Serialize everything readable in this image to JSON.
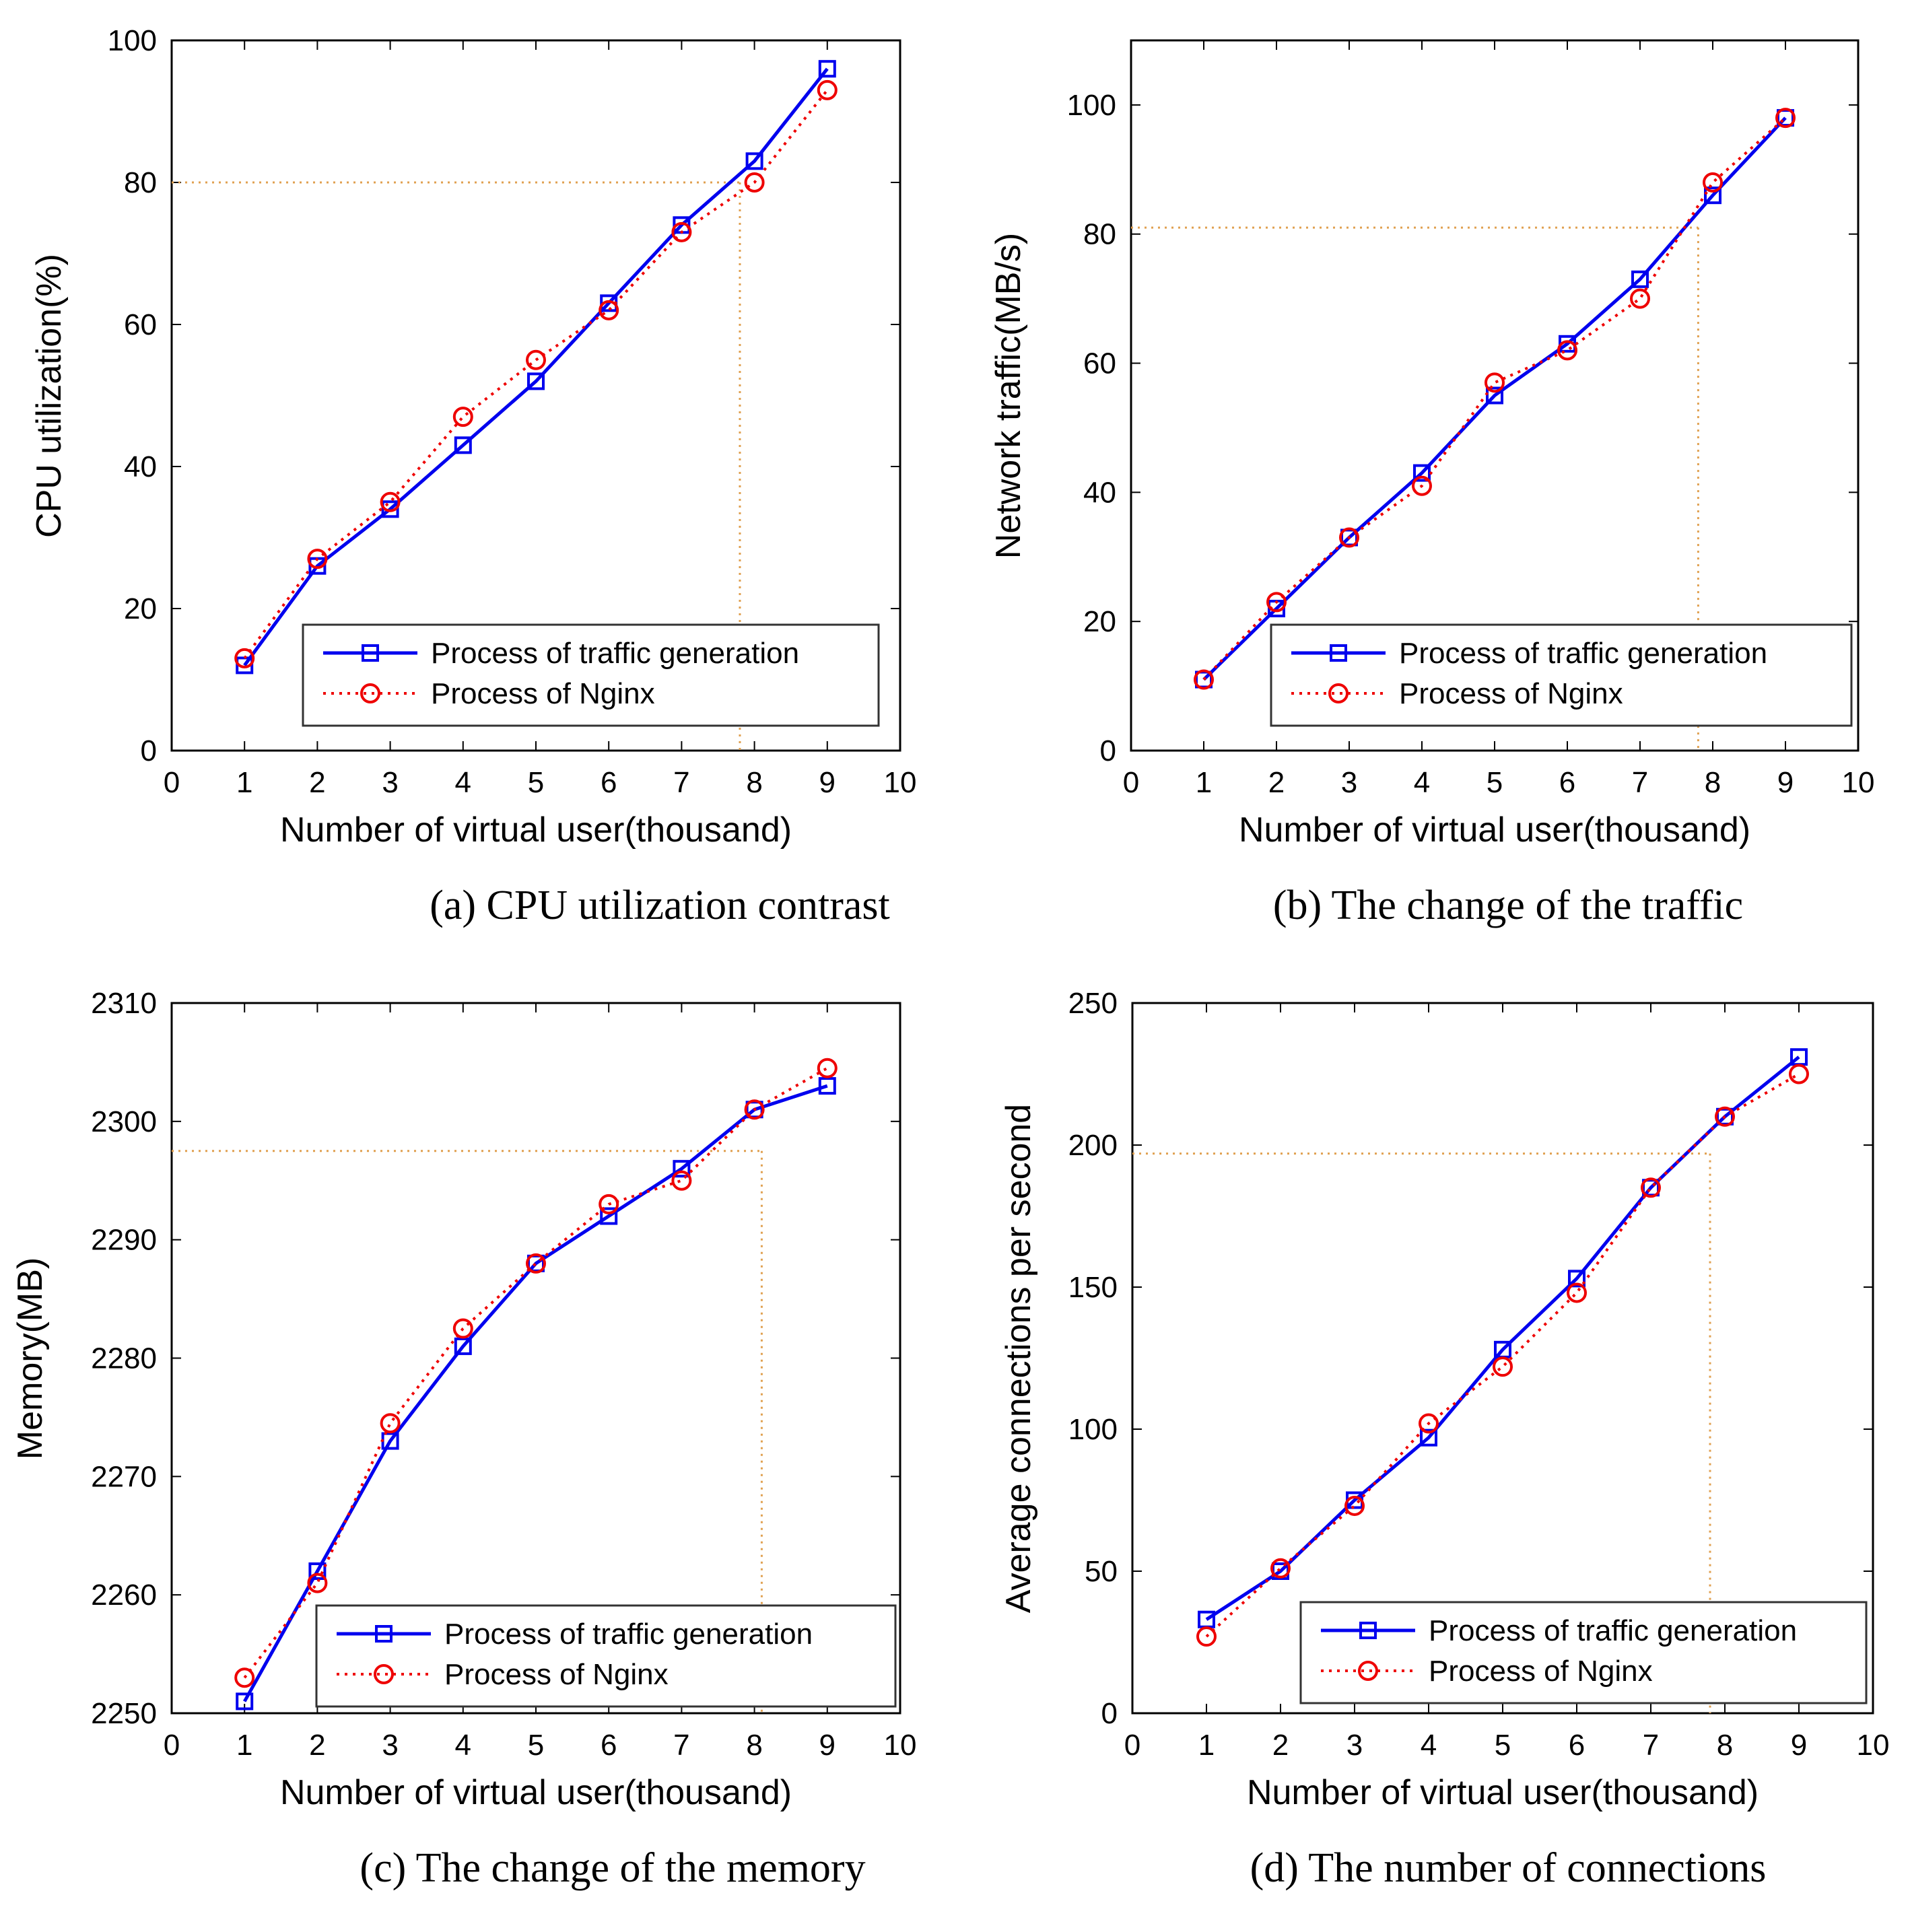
{
  "colors": {
    "series_traffic": "#0000ee",
    "series_nginx": "#ee0000",
    "guide": "#e0a050",
    "axis": "#000000"
  },
  "chart_data": [
    {
      "type": "line",
      "caption": "(a) CPU utilization contrast",
      "xlabel": "Number of virtual user(thousand)",
      "ylabel": "CPU utilization(%)",
      "xlim": [
        0,
        10
      ],
      "ylim": [
        0,
        100
      ],
      "xticks": [
        0,
        1,
        2,
        3,
        4,
        5,
        6,
        7,
        8,
        9,
        10
      ],
      "yticks": [
        0,
        20,
        40,
        60,
        80,
        100
      ],
      "x": [
        1,
        2,
        3,
        4,
        5,
        6,
        7,
        8,
        9
      ],
      "series": [
        {
          "name": "Process of traffic generation",
          "marker": "square",
          "style": "solid",
          "values": [
            12,
            26,
            34,
            43,
            52,
            63,
            74,
            83,
            96
          ]
        },
        {
          "name": "Process of Nginx",
          "marker": "circle",
          "style": "dotted",
          "values": [
            13,
            27,
            35,
            47,
            55,
            62,
            73,
            80,
            93
          ]
        }
      ],
      "guide": {
        "x": 7.8,
        "y": 80
      },
      "legend": "bottom-right"
    },
    {
      "type": "line",
      "caption": "(b) The change of the traffic",
      "xlabel": "Number of virtual user(thousand)",
      "ylabel": "Network traffic(MB/s)",
      "xlim": [
        0,
        10
      ],
      "ylim": [
        0,
        110
      ],
      "xticks": [
        0,
        1,
        2,
        3,
        4,
        5,
        6,
        7,
        8,
        9,
        10
      ],
      "yticks": [
        0,
        20,
        40,
        60,
        80,
        100
      ],
      "x": [
        1,
        2,
        3,
        4,
        5,
        6,
        7,
        8,
        9
      ],
      "series": [
        {
          "name": "Process of traffic generation",
          "marker": "square",
          "style": "solid",
          "values": [
            11,
            22,
            33,
            43,
            55,
            63,
            73,
            86,
            98
          ]
        },
        {
          "name": "Process of Nginx",
          "marker": "circle",
          "style": "dotted",
          "values": [
            11,
            23,
            33,
            41,
            57,
            62,
            70,
            88,
            98
          ]
        }
      ],
      "guide": {
        "x": 7.8,
        "y": 81
      },
      "legend": "bottom-right"
    },
    {
      "type": "line",
      "caption": "(c) The change of the memory",
      "xlabel": "Number of virtual user(thousand)",
      "ylabel": "Memory(MB)",
      "xlim": [
        0,
        10
      ],
      "ylim": [
        2250,
        2310
      ],
      "xticks": [
        0,
        1,
        2,
        3,
        4,
        5,
        6,
        7,
        8,
        9,
        10
      ],
      "yticks": [
        2250,
        2260,
        2270,
        2280,
        2290,
        2300,
        2310
      ],
      "x": [
        1,
        2,
        3,
        4,
        5,
        6,
        7,
        8,
        9
      ],
      "series": [
        {
          "name": "Process of traffic generation",
          "marker": "square",
          "style": "solid",
          "values": [
            2251,
            2262,
            2273,
            2281,
            2288,
            2292,
            2296,
            2301,
            2303
          ]
        },
        {
          "name": "Process of Nginx",
          "marker": "circle",
          "style": "dotted",
          "values": [
            2253,
            2261,
            2274.5,
            2282.5,
            2288,
            2293,
            2295,
            2301,
            2304.5
          ]
        }
      ],
      "guide": {
        "x": 8.1,
        "y": 2297.5
      },
      "legend": "bottom-right"
    },
    {
      "type": "line",
      "caption": "(d) The number of connections",
      "xlabel": "Number of virtual user(thousand)",
      "ylabel": "Average connections per second",
      "xlim": [
        0,
        10
      ],
      "ylim": [
        0,
        250
      ],
      "xticks": [
        0,
        1,
        2,
        3,
        4,
        5,
        6,
        7,
        8,
        9,
        10
      ],
      "yticks": [
        0,
        50,
        100,
        150,
        200,
        250
      ],
      "x": [
        1,
        2,
        3,
        4,
        5,
        6,
        7,
        8,
        9
      ],
      "series": [
        {
          "name": "Process of traffic generation",
          "marker": "square",
          "style": "solid",
          "values": [
            33,
            50,
            75,
            97,
            128,
            153,
            185,
            210,
            231
          ]
        },
        {
          "name": "Process of Nginx",
          "marker": "circle",
          "style": "dotted",
          "values": [
            27,
            51,
            73,
            102,
            122,
            148,
            185,
            210,
            225
          ]
        }
      ],
      "guide": {
        "x": 7.8,
        "y": 197
      },
      "legend": "bottom-right"
    }
  ]
}
